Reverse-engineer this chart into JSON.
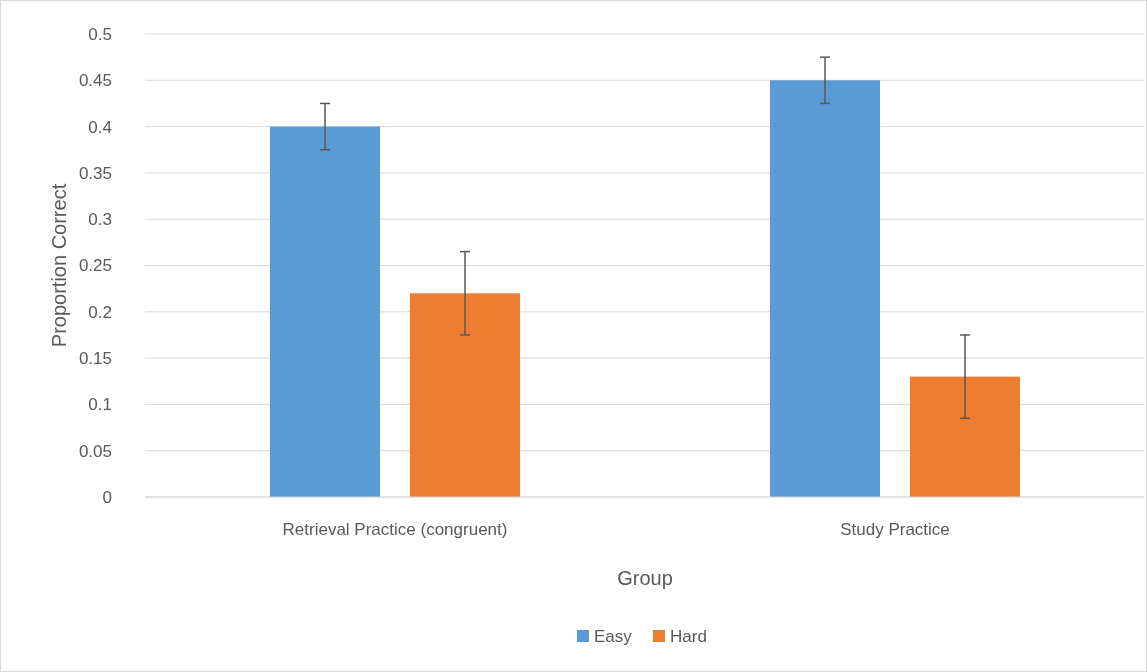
{
  "chart_data": {
    "type": "bar",
    "xlabel": "Group",
    "ylabel": "Proportion Correct",
    "categories": [
      "Retrieval Practice (congruent)",
      "Study Practice"
    ],
    "series": [
      {
        "name": "Easy",
        "color": "#5b9bd5",
        "values": [
          0.4,
          0.45
        ],
        "errors": [
          0.025,
          0.025
        ]
      },
      {
        "name": "Hard",
        "color": "#ed7d31",
        "values": [
          0.22,
          0.13
        ],
        "errors": [
          0.045,
          0.045
        ]
      }
    ],
    "ylim": [
      0,
      0.5
    ],
    "yticks": [
      0,
      {
        "value": 0.05,
        "label": "0.05"
      },
      {
        "value": 0.1,
        "label": "0.1"
      },
      {
        "value": 0.15,
        "label": "0.15"
      },
      {
        "value": 0.2,
        "label": "0.2"
      },
      {
        "value": 0.25,
        "label": "0.25"
      },
      {
        "value": 0.3,
        "label": "0.3"
      },
      {
        "value": 0.35,
        "label": "0.35"
      },
      {
        "value": 0.4,
        "label": "0.4"
      },
      {
        "value": 0.45,
        "label": "0.45"
      },
      {
        "value": 0.5,
        "label": "0.5"
      }
    ],
    "grid": "y",
    "legend": "bottom"
  }
}
